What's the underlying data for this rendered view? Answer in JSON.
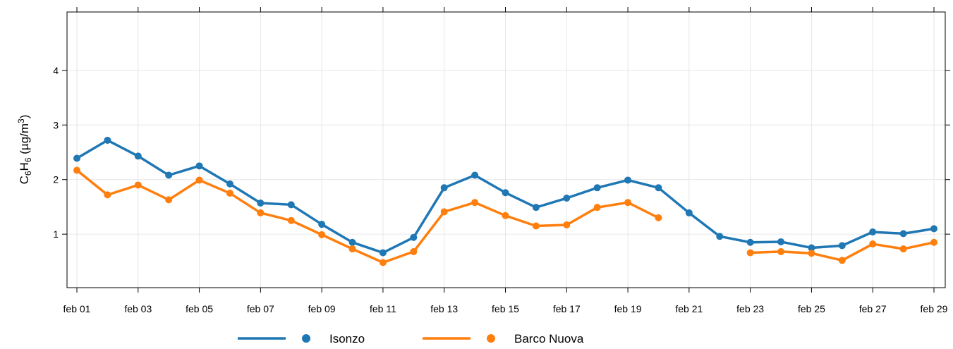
{
  "chart_data": {
    "type": "line",
    "y_label_parts": [
      "C",
      "6",
      "H",
      "6",
      " (µg/m",
      "3",
      ")"
    ],
    "categories": [
      "feb 01",
      null,
      "feb 03",
      null,
      "feb 05",
      null,
      "feb 07",
      null,
      "feb 09",
      null,
      "feb 11",
      null,
      "feb 13",
      null,
      "feb 15",
      null,
      "feb 17",
      null,
      "feb 19",
      null,
      "feb 21",
      null,
      "feb 23",
      null,
      "feb 25",
      null,
      "feb 27",
      null,
      "feb 29"
    ],
    "series": [
      {
        "name": "Isonzo",
        "color": "#1f77b4",
        "values": [
          2.39,
          2.72,
          2.43,
          2.08,
          2.25,
          1.92,
          1.57,
          1.54,
          1.18,
          0.85,
          0.66,
          0.94,
          1.85,
          2.08,
          1.76,
          1.49,
          1.66,
          1.85,
          1.99,
          1.85,
          1.39,
          0.96,
          0.85,
          0.86,
          0.75,
          0.79,
          1.04,
          1.01,
          1.1
        ]
      },
      {
        "name": "Barco Nuova",
        "color": "#ff7f0e",
        "values": [
          2.17,
          1.72,
          1.9,
          1.63,
          1.99,
          1.75,
          1.39,
          1.25,
          0.99,
          0.73,
          0.48,
          0.68,
          1.41,
          1.58,
          1.34,
          1.15,
          1.17,
          1.49,
          1.58,
          1.3,
          null,
          null,
          0.66,
          0.68,
          0.65,
          0.52,
          0.82,
          0.73,
          0.85
        ]
      }
    ],
    "ylim": [
      0.02,
      5.07
    ],
    "yticks": [
      1,
      2,
      3,
      4
    ],
    "grid": true
  }
}
